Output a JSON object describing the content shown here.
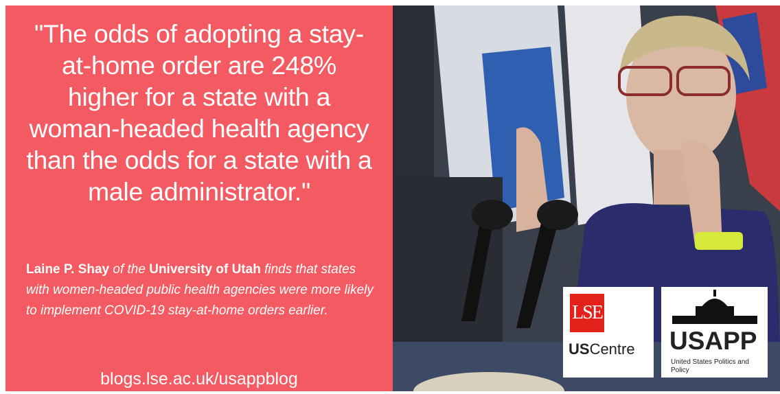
{
  "quote": "\"The odds of adopting a stay-at-home order are 248% higher for a state with a woman-headed health agency than the odds for a state with a male administrator.\"",
  "attribution": {
    "author": "Laine P. Shay",
    "connector": "of the",
    "institution": "University of Utah",
    "finding": "finds that states with women-headed public health agencies were more likely to implement COVID-19 stay-at-home orders earlier."
  },
  "url": "blogs.lse.ac.uk/usappblog",
  "logos": {
    "lse": {
      "mark": "LSE",
      "name_bold": "US",
      "name": "Centre"
    },
    "usapp": {
      "name": "USAPP",
      "tagline": "United States Politics and Policy"
    }
  }
}
